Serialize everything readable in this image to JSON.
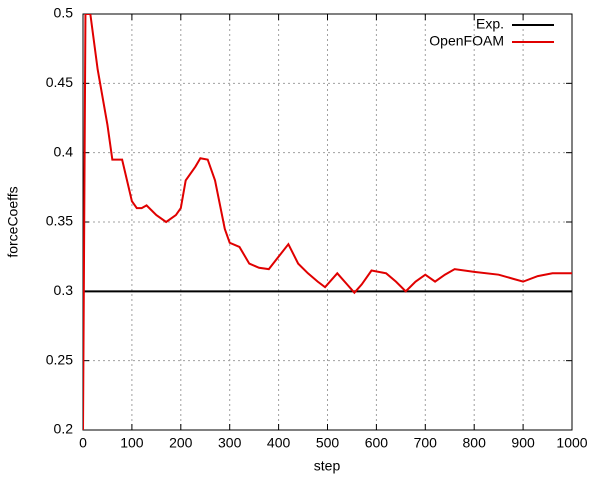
{
  "chart_data": {
    "type": "line",
    "xlabel": "step",
    "ylabel": "forceCoeffs",
    "xlim": [
      0,
      1000
    ],
    "ylim": [
      0.2,
      0.5
    ],
    "xticks": [
      0,
      100,
      200,
      300,
      400,
      500,
      600,
      700,
      800,
      900,
      1000
    ],
    "yticks": [
      0.2,
      0.25,
      0.3,
      0.35,
      0.4,
      0.45,
      0.5
    ],
    "grid": true,
    "legend": "top-right",
    "series": [
      {
        "name": "Exp.",
        "color": "#000000",
        "x": [
          0,
          1000
        ],
        "values": [
          0.3,
          0.3
        ]
      },
      {
        "name": "OpenFOAM",
        "color": "#e00000",
        "x": [
          0,
          5,
          15,
          30,
          50,
          60,
          80,
          90,
          100,
          110,
          120,
          130,
          150,
          170,
          190,
          200,
          210,
          230,
          240,
          255,
          270,
          290,
          300,
          320,
          340,
          360,
          380,
          400,
          420,
          440,
          460,
          480,
          495,
          520,
          540,
          555,
          570,
          590,
          620,
          640,
          660,
          680,
          700,
          720,
          740,
          760,
          800,
          850,
          880,
          900,
          930,
          960,
          1000
        ],
        "values": [
          0.2,
          0.5,
          0.5,
          0.46,
          0.42,
          0.395,
          0.395,
          0.38,
          0.365,
          0.36,
          0.36,
          0.362,
          0.355,
          0.35,
          0.355,
          0.36,
          0.38,
          0.39,
          0.396,
          0.395,
          0.38,
          0.345,
          0.335,
          0.332,
          0.32,
          0.317,
          0.316,
          0.325,
          0.334,
          0.32,
          0.313,
          0.307,
          0.303,
          0.313,
          0.305,
          0.299,
          0.305,
          0.315,
          0.313,
          0.307,
          0.3,
          0.307,
          0.312,
          0.307,
          0.312,
          0.316,
          0.314,
          0.312,
          0.309,
          0.307,
          0.311,
          0.313,
          0.313
        ]
      }
    ]
  }
}
